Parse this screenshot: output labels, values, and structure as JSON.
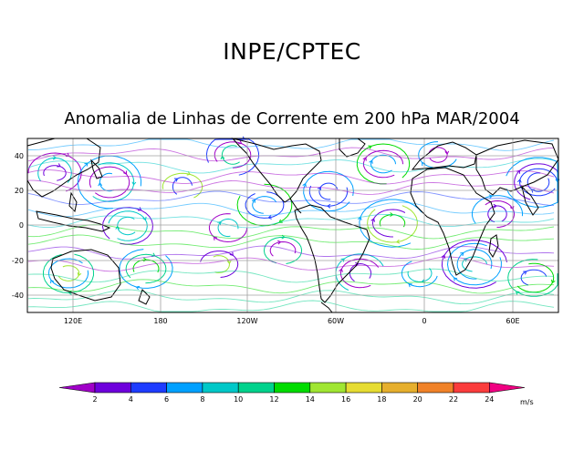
{
  "header": {
    "organization": "INPE/CPTEC",
    "map_title": "Anomalia de Linhas de Corrente em 200 hPa MAR/2004"
  },
  "map": {
    "lon_labels": [
      "120E",
      "180",
      "120W",
      "60W",
      "0",
      "60E"
    ],
    "lat_labels": [
      "40",
      "20",
      "0",
      "-20",
      "-40"
    ],
    "background": "#ffffff",
    "gridline_color": "#a0a0a0",
    "coastline_color": "#000000"
  },
  "colorbar": {
    "values": [
      "2",
      "4",
      "6",
      "8",
      "10",
      "12",
      "14",
      "16",
      "18",
      "20",
      "22",
      "24"
    ],
    "unit": "m/s",
    "colors": [
      "#a000c8",
      "#6e00dc",
      "#1e3cff",
      "#00a0ff",
      "#00c8c8",
      "#00d28c",
      "#00dc00",
      "#a0e632",
      "#e6dc32",
      "#e6af2d",
      "#f08228",
      "#fa3c3c",
      "#f00082"
    ]
  }
}
